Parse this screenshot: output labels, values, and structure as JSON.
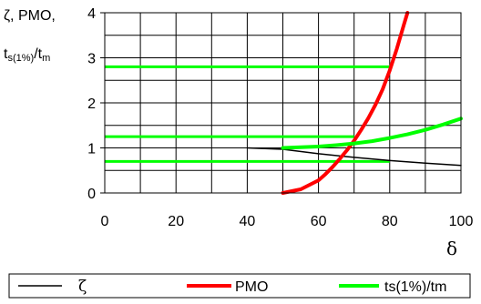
{
  "chart_data": {
    "type": "line",
    "xlabel": "δ",
    "ylabel": {
      "line1_main": "ζ, PMO,",
      "line2_t1": "t",
      "line2_sub1": "s(1%)",
      "line2_sep": "/t",
      "line2_sub2": "m"
    },
    "xlim": [
      0,
      100
    ],
    "ylim": [
      0,
      4
    ],
    "x_ticks": [
      "0",
      "20",
      "40",
      "60",
      "80",
      "100"
    ],
    "y_ticks": [
      "0",
      "1",
      "2",
      "3",
      "4"
    ],
    "grid": true,
    "legend_position": "bottom",
    "series": [
      {
        "name": "ζ",
        "color": "#000000",
        "x": [
          40,
          50,
          60,
          70,
          80,
          90,
          100
        ],
        "y": [
          1.0,
          0.97,
          0.87,
          0.79,
          0.72,
          0.66,
          0.61
        ]
      },
      {
        "name": "PMO",
        "color": "#ff0000",
        "x": [
          50,
          55,
          60,
          62,
          64,
          66,
          68,
          70,
          72,
          74,
          76,
          78,
          80,
          82,
          84,
          85
        ],
        "y": [
          0.0,
          0.08,
          0.28,
          0.42,
          0.58,
          0.76,
          0.95,
          1.16,
          1.4,
          1.66,
          1.96,
          2.3,
          2.72,
          3.2,
          3.74,
          4.0
        ]
      },
      {
        "name": "ts(1%)/tm",
        "color": "#00ff00",
        "x": [
          50,
          60,
          65,
          70,
          75,
          80,
          85,
          90,
          95,
          100
        ],
        "y": [
          1.0,
          1.03,
          1.06,
          1.1,
          1.15,
          1.22,
          1.3,
          1.4,
          1.52,
          1.65
        ]
      }
    ],
    "reference_lines": [
      {
        "color": "#00ff00",
        "y": 2.8,
        "x": [
          0,
          80
        ]
      },
      {
        "color": "#00ff00",
        "y": 1.25,
        "x": [
          0,
          70
        ]
      },
      {
        "color": "#00ff00",
        "y": 0.7,
        "x": [
          0,
          80
        ]
      }
    ]
  }
}
